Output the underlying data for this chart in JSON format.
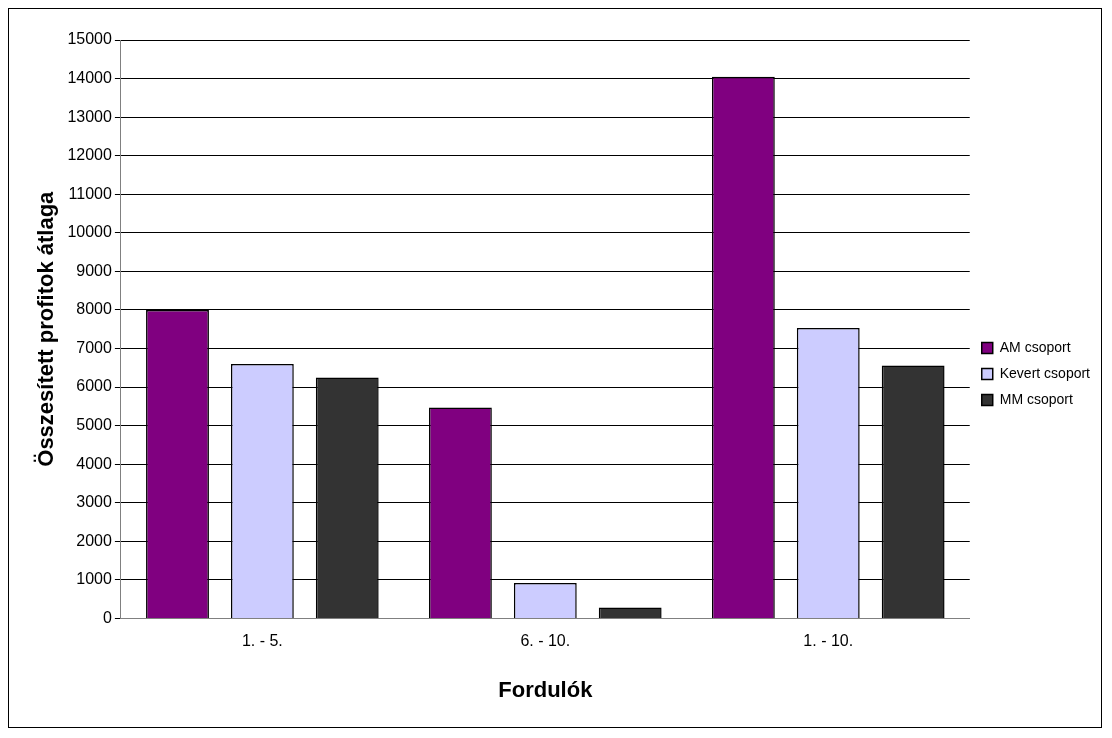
{
  "chart_data": {
    "type": "bar",
    "xlabel": "Fordulók",
    "ylabel": "Összesített profitok átlaga",
    "categories": [
      "1. - 5.",
      "6. - 10.",
      "1. - 10."
    ],
    "series": [
      {
        "name": "AM csoport",
        "color": "#800080",
        "values": [
          8000,
          5470,
          14050
        ]
      },
      {
        "name": "Kevert csoport",
        "color": "#ccccff",
        "values": [
          6600,
          920,
          7530
        ]
      },
      {
        "name": "MM csoport",
        "color": "#333333",
        "values": [
          6250,
          280,
          6560
        ]
      }
    ],
    "ylim": [
      0,
      15000
    ],
    "yticks": [
      0,
      1000,
      2000,
      3000,
      4000,
      5000,
      6000,
      7000,
      8000,
      9000,
      10000,
      11000,
      12000,
      13000,
      14000,
      15000
    ],
    "grid": "y",
    "legend": "right"
  }
}
